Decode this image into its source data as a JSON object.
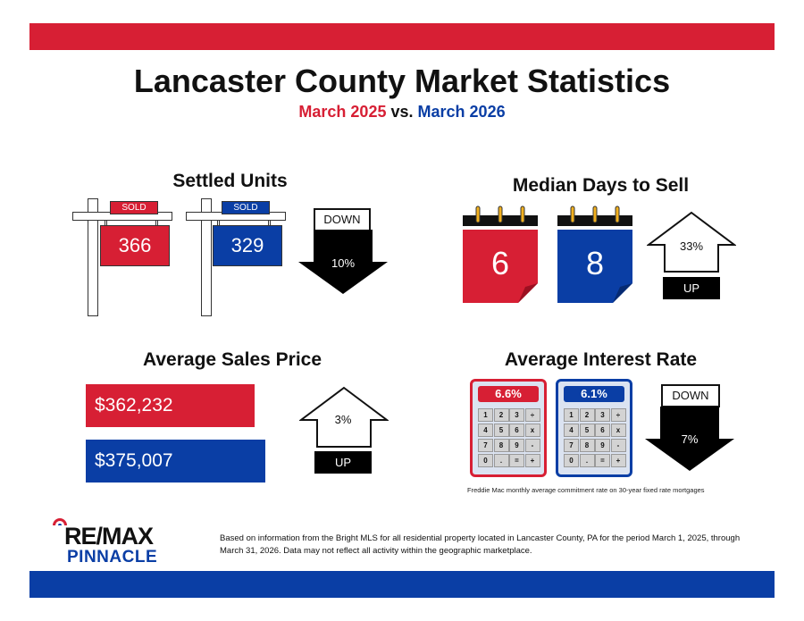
{
  "header": {
    "title": "Lancaster County Market Statistics",
    "subtitle_left": "March 2025",
    "subtitle_vs": "vs.",
    "subtitle_right": "March 2026"
  },
  "settled_units": {
    "title": "Settled Units",
    "sold_label": "SOLD",
    "value_2025": "366",
    "value_2026": "329",
    "direction": "DOWN",
    "change": "10%"
  },
  "median_days": {
    "title": "Median Days to Sell",
    "value_2025": "6",
    "value_2026": "8",
    "direction": "UP",
    "change": "33%"
  },
  "avg_price": {
    "title": "Average Sales Price",
    "value_2025": "$362,232",
    "value_2026": "$375,007",
    "direction": "UP",
    "change": "3%"
  },
  "interest_rate": {
    "title": "Average Interest Rate",
    "value_2025": "6.6%",
    "value_2026": "6.1%",
    "direction": "DOWN",
    "change": "7%",
    "keys": [
      "1",
      "2",
      "3",
      "÷",
      "4",
      "5",
      "6",
      "x",
      "7",
      "8",
      "9",
      "-",
      "0",
      ".",
      "=",
      "+"
    ],
    "footnote": "Freddie Mac monthly average commitment rate on 30-year fixed rate mortgages"
  },
  "footer": {
    "logo_brand": "RE/MAX",
    "logo_sub": "PINNACLE",
    "disclaimer": "Based on information from the Bright MLS for all residential property located in Lancaster County, PA for the period March 1, 2025, through March 31, 2026.  Data may not reflect all activity within the geographic marketplace."
  },
  "colors": {
    "red": "#d71f34",
    "blue": "#0a3ea5"
  }
}
